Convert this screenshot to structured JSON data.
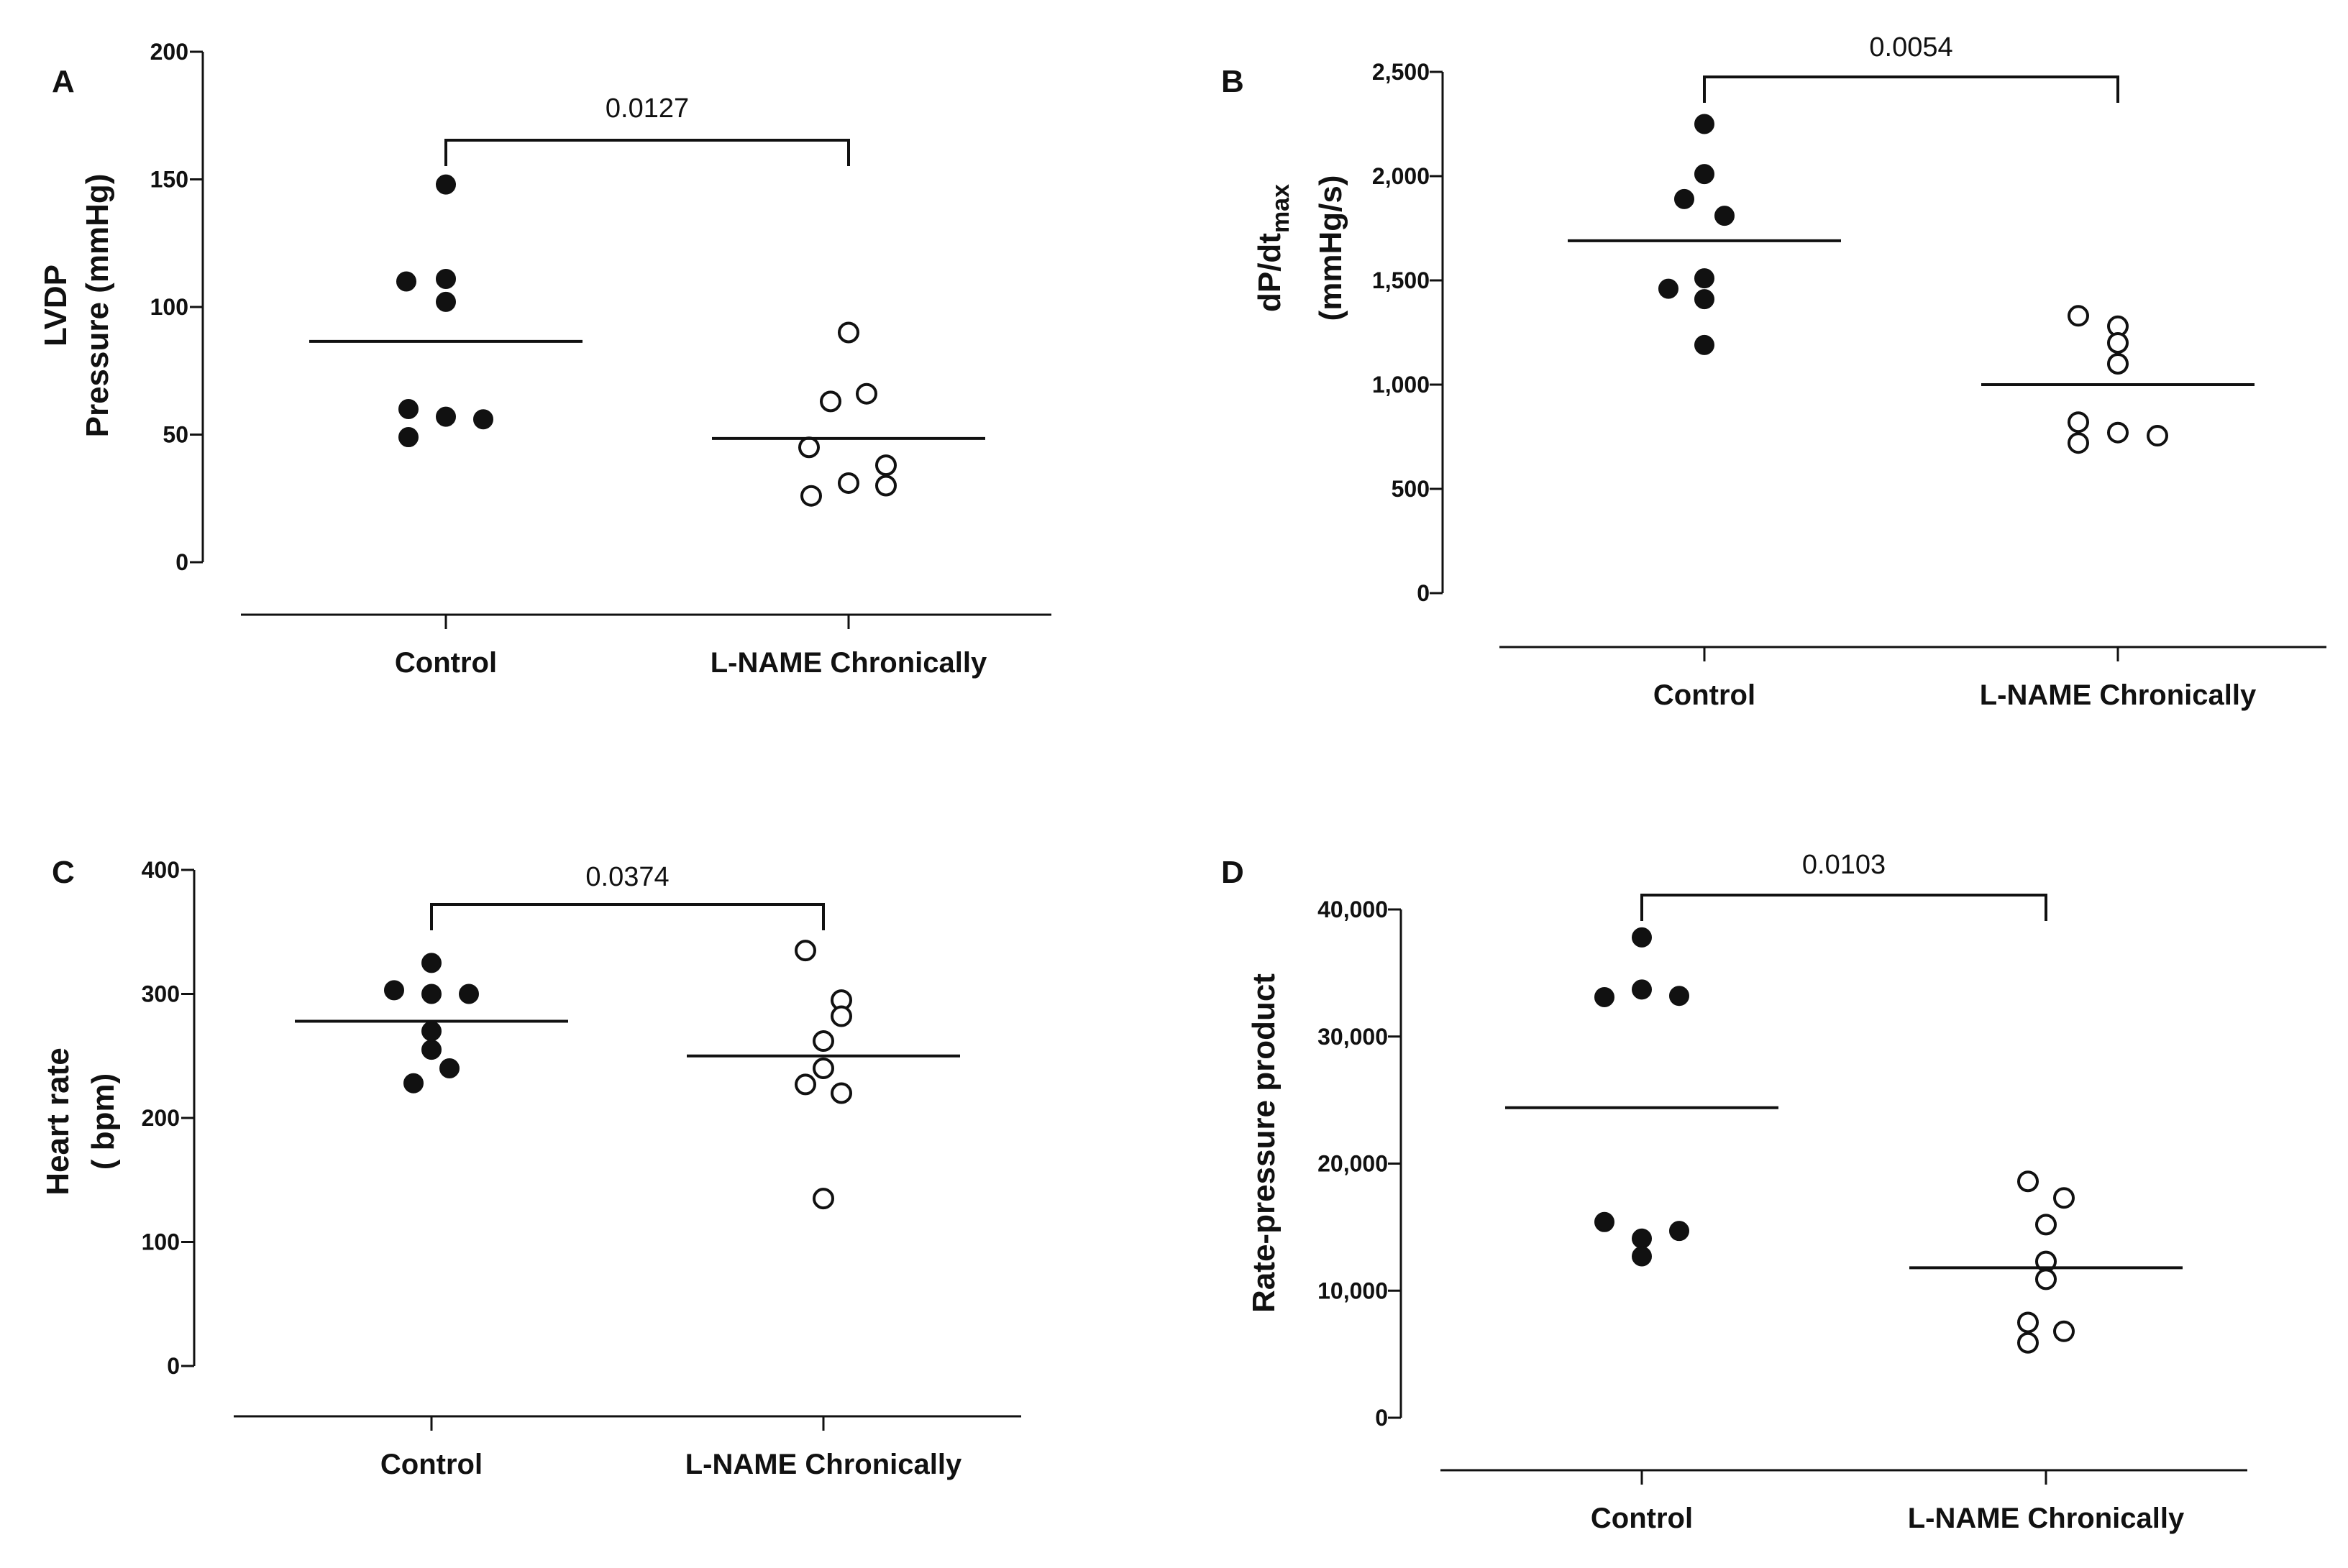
{
  "chart_data": [
    {
      "panel": "A",
      "type": "scatter",
      "categories": [
        "Control",
        "L-NAME Chronically"
      ],
      "ylabel_lines": [
        "LVDP",
        "Pressure (mmHg)"
      ],
      "ylim": [
        0,
        200
      ],
      "yticks": [
        "0",
        "50",
        "100",
        "150",
        "200"
      ],
      "series": [
        {
          "values": [
            148,
            110,
            111,
            102,
            60,
            57,
            56,
            49
          ],
          "marker": "filled"
        },
        {
          "values": [
            90,
            66,
            63,
            45,
            38,
            31,
            30,
            26
          ],
          "marker": "open"
        }
      ],
      "means": [
        86.5,
        48.5
      ],
      "pvalue": "0.0127"
    },
    {
      "panel": "B",
      "type": "scatter",
      "categories": [
        "Control",
        "L-NAME Chronically"
      ],
      "ylabel_main": "dP/dt",
      "ylabel_sub": "max",
      "ylabel_line2": "(mmHg/s)",
      "ylim": [
        0,
        2500
      ],
      "yticks": [
        "0",
        "500",
        "1,000",
        "1,500",
        "2,000",
        "2,500"
      ],
      "series": [
        {
          "values": [
            2250,
            2010,
            1890,
            1810,
            1510,
            1460,
            1410,
            1190
          ],
          "marker": "filled"
        },
        {
          "values": [
            1330,
            1280,
            1200,
            1100,
            820,
            770,
            755,
            720
          ],
          "marker": "open"
        }
      ],
      "means": [
        1690,
        1000
      ],
      "pvalue": "0.0054"
    },
    {
      "panel": "C",
      "type": "scatter",
      "categories": [
        "Control",
        "L-NAME Chronically"
      ],
      "ylabel_lines": [
        "Heart rate",
        "( bpm)"
      ],
      "ylim": [
        0,
        400
      ],
      "yticks": [
        "0",
        "100",
        "200",
        "300",
        "400"
      ],
      "series": [
        {
          "values": [
            325,
            303,
            300,
            300,
            270,
            255,
            240,
            228
          ],
          "marker": "filled"
        },
        {
          "values": [
            335,
            295,
            282,
            262,
            240,
            227,
            220,
            135
          ],
          "marker": "open"
        }
      ],
      "means": [
        278,
        250
      ],
      "pvalue": "0.0374"
    },
    {
      "panel": "D",
      "type": "scatter",
      "categories": [
        "Control",
        "L-NAME Chronically"
      ],
      "ylabel_lines": [
        "Rate-pressure product"
      ],
      "ylim": [
        0,
        40000
      ],
      "yticks": [
        "0",
        "10,000",
        "20,000",
        "30,000",
        "40,000"
      ],
      "series": [
        {
          "values": [
            37800,
            33700,
            33200,
            33100,
            15400,
            14700,
            14100,
            12700
          ],
          "marker": "filled"
        },
        {
          "values": [
            18600,
            17300,
            15200,
            12300,
            10900,
            7500,
            6800,
            5900
          ],
          "marker": "open"
        }
      ],
      "means": [
        24400,
        11800
      ],
      "pvalue": "0.0103"
    }
  ]
}
